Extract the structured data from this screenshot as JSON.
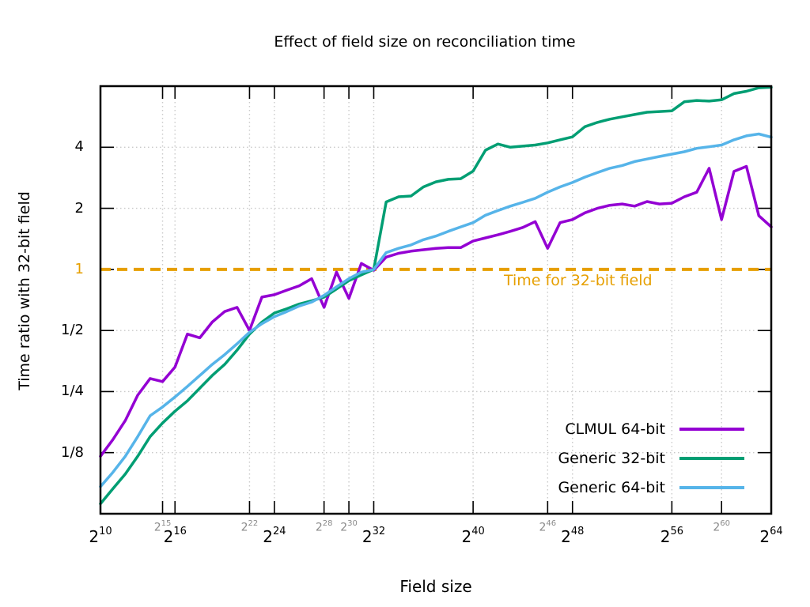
{
  "title": "Effect of field size on reconciliation time",
  "chart_data": {
    "type": "line",
    "title": "Effect of field size on reconciliation time",
    "xlabel": "Field size",
    "ylabel": "Time ratio with 32-bit field",
    "x_scale": "log2",
    "y_scale": "log2",
    "x_tick_base": "2",
    "x_range_exponents": [
      10,
      64
    ],
    "y_range": [
      0.0625,
      8
    ],
    "grid": true,
    "legend_position": "bottom-right",
    "x_ticks": [
      {
        "exp": 10,
        "major": true
      },
      {
        "exp": 15,
        "major": false
      },
      {
        "exp": 16,
        "major": true
      },
      {
        "exp": 22,
        "major": false
      },
      {
        "exp": 24,
        "major": true
      },
      {
        "exp": 28,
        "major": false
      },
      {
        "exp": 30,
        "major": false
      },
      {
        "exp": 32,
        "major": true
      },
      {
        "exp": 40,
        "major": true
      },
      {
        "exp": 46,
        "major": false
      },
      {
        "exp": 48,
        "major": true
      },
      {
        "exp": 56,
        "major": true
      },
      {
        "exp": 60,
        "major": false
      },
      {
        "exp": 64,
        "major": true
      }
    ],
    "y_ticks": [
      {
        "label": "4",
        "value": 4,
        "highlight": false
      },
      {
        "label": "2",
        "value": 2,
        "highlight": false
      },
      {
        "label": "1",
        "value": 1,
        "highlight": true
      },
      {
        "label": "1/2",
        "value": 0.5,
        "highlight": false
      },
      {
        "label": "1/4",
        "value": 0.25,
        "highlight": false
      },
      {
        "label": "1/8",
        "value": 0.125,
        "highlight": false
      }
    ],
    "reference_line": {
      "label": "Time for 32-bit field",
      "value": 1,
      "color": "#E69F00"
    },
    "x_exponents": [
      10,
      11,
      12,
      13,
      14,
      15,
      16,
      17,
      18,
      19,
      20,
      21,
      22,
      23,
      24,
      25,
      26,
      27,
      28,
      29,
      30,
      31,
      32,
      33,
      34,
      35,
      36,
      37,
      38,
      39,
      40,
      41,
      42,
      43,
      44,
      45,
      46,
      47,
      48,
      49,
      50,
      51,
      52,
      53,
      54,
      55,
      56,
      57,
      58,
      59,
      60,
      61,
      62,
      63,
      64
    ],
    "series": [
      {
        "name": "CLMUL 64-bit",
        "color": "#9400D3",
        "values": [
          0.12,
          0.145,
          0.18,
          0.24,
          0.29,
          0.28,
          0.33,
          0.48,
          0.46,
          0.55,
          0.62,
          0.65,
          0.5,
          0.73,
          0.75,
          0.79,
          0.83,
          0.9,
          0.65,
          0.97,
          0.72,
          1.07,
          0.99,
          1.15,
          1.2,
          1.23,
          1.25,
          1.27,
          1.28,
          1.28,
          1.38,
          1.43,
          1.48,
          1.54,
          1.61,
          1.72,
          1.27,
          1.7,
          1.76,
          1.9,
          2.0,
          2.07,
          2.1,
          2.05,
          2.16,
          2.1,
          2.12,
          2.28,
          2.4,
          3.15,
          1.76,
          3.04,
          3.22,
          1.84,
          1.62
        ]
      },
      {
        "name": "Generic 32-bit",
        "color": "#009E73",
        "values": [
          0.07,
          0.083,
          0.098,
          0.12,
          0.15,
          0.175,
          0.2,
          0.225,
          0.26,
          0.3,
          0.34,
          0.4,
          0.48,
          0.55,
          0.61,
          0.64,
          0.675,
          0.7,
          0.73,
          0.8,
          0.88,
          0.94,
          1.0,
          2.15,
          2.28,
          2.3,
          2.55,
          2.7,
          2.78,
          2.8,
          3.05,
          3.87,
          4.15,
          4.0,
          4.05,
          4.1,
          4.2,
          4.35,
          4.5,
          5.05,
          5.3,
          5.5,
          5.65,
          5.8,
          5.95,
          6.0,
          6.05,
          6.7,
          6.8,
          6.75,
          6.85,
          7.35,
          7.55,
          7.85,
          7.9
        ]
      },
      {
        "name": "Generic 64-bit",
        "color": "#56B4E9",
        "values": [
          0.085,
          0.1,
          0.12,
          0.15,
          0.19,
          0.21,
          0.235,
          0.265,
          0.3,
          0.34,
          0.38,
          0.43,
          0.49,
          0.54,
          0.585,
          0.62,
          0.66,
          0.69,
          0.745,
          0.82,
          0.9,
          0.97,
          1.0,
          1.21,
          1.27,
          1.32,
          1.4,
          1.46,
          1.54,
          1.62,
          1.7,
          1.85,
          1.95,
          2.05,
          2.14,
          2.24,
          2.4,
          2.55,
          2.68,
          2.85,
          3.0,
          3.15,
          3.25,
          3.4,
          3.5,
          3.6,
          3.7,
          3.8,
          3.95,
          4.02,
          4.1,
          4.35,
          4.55,
          4.65,
          4.48
        ]
      }
    ],
    "style": {
      "border_color": "#000000",
      "grid_color": "#c9c9c9",
      "minor_tick_label_color": "#8a8a8a",
      "line_width": 3.5
    }
  }
}
